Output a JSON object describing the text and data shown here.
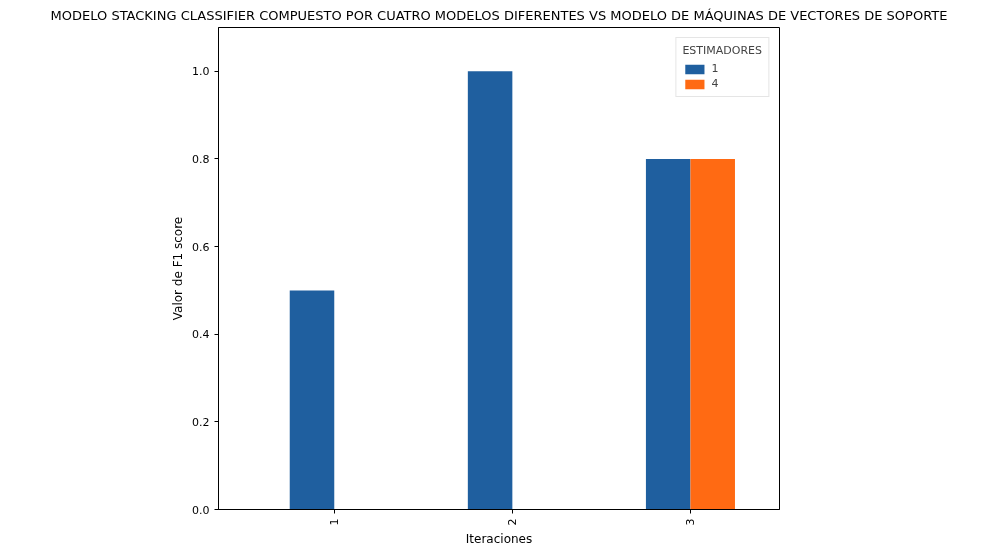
{
  "chart_data": {
    "type": "bar",
    "title": "MODELO STACKING CLASSIFIER COMPUESTO POR CUATRO MODELOS DIFERENTES VS MODELO DE MÁQUINAS DE VECTORES DE SOPORTE",
    "xlabel": "Iteraciones",
    "ylabel": "Valor de F1 score",
    "legend_title": "ESTIMADORES",
    "categories": [
      "1",
      "2",
      "3"
    ],
    "series": [
      {
        "name": "1",
        "color": "#1f5f9f",
        "values": [
          0.5,
          1.0,
          0.8
        ]
      },
      {
        "name": "4",
        "color": "#ff6a13",
        "values": [
          null,
          null,
          0.8
        ]
      }
    ],
    "ylim": [
      0,
      1.1
    ],
    "yticks": [
      {
        "value": 0,
        "label": "0.0"
      },
      0.2,
      0.4,
      0.6,
      0.8,
      {
        "value": 1,
        "label": "1.0"
      }
    ],
    "grid": false,
    "legend": "top right"
  }
}
